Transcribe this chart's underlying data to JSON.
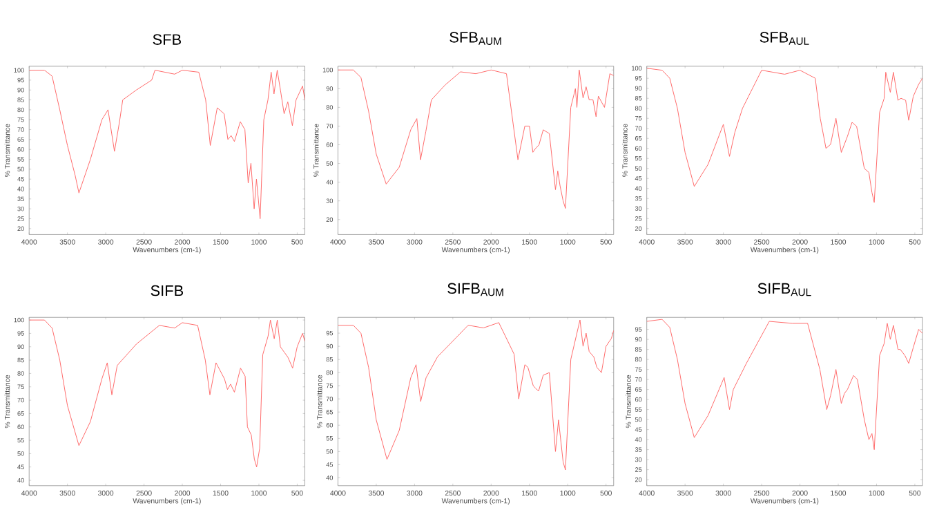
{
  "chart_data": [
    {
      "type": "line",
      "title": "SFB",
      "xlabel": "Wavenumbers (cm-1)",
      "ylabel": "% Transmittance",
      "xlim": [
        4000,
        400
      ],
      "ylim": [
        17,
        102
      ],
      "xticks": [
        4000,
        3500,
        3000,
        2500,
        2000,
        1500,
        1000,
        500
      ],
      "yticks": [
        20,
        25,
        30,
        35,
        40,
        45,
        50,
        55,
        60,
        65,
        70,
        75,
        80,
        85,
        90,
        95,
        100
      ],
      "x": [
        4000,
        3800,
        3700,
        3600,
        3500,
        3400,
        3350,
        3200,
        3050,
        2970,
        2886,
        2820,
        2778,
        2600,
        2400,
        2357,
        2100,
        2000,
        1785,
        1695,
        1635,
        1544,
        1454,
        1405,
        1363,
        1320,
        1243,
        1183,
        1140,
        1104,
        1062,
        1032,
        984,
        936,
        882,
        840,
        803,
        761,
        719,
        671,
        623,
        563,
        515,
        430,
        400
      ],
      "series": [
        {
          "color": "#ff6b6b",
          "values": [
            100,
            100,
            97,
            80,
            62,
            47,
            38,
            55,
            75,
            80,
            59,
            74,
            85,
            90,
            95,
            100,
            98,
            100,
            99,
            85,
            62,
            81,
            78,
            65,
            67,
            64,
            74,
            70,
            43,
            53,
            30,
            45,
            25,
            75,
            85,
            99,
            88,
            100,
            90,
            78,
            84,
            72,
            85,
            92,
            85
          ]
        }
      ]
    },
    {
      "type": "line",
      "title": "SFB$_{AUM}$",
      "xlabel": "Wavenumbers (cm-1)",
      "ylabel": "% Transmittance",
      "xlim": [
        4000,
        400
      ],
      "ylim": [
        12,
        102
      ],
      "xticks": [
        4000,
        3500,
        3000,
        2500,
        2000,
        1500,
        1000,
        500
      ],
      "yticks": [
        20,
        30,
        40,
        50,
        60,
        70,
        80,
        90,
        100
      ],
      "x": [
        4000,
        3800,
        3700,
        3600,
        3500,
        3370,
        3200,
        3050,
        2970,
        2922,
        2853,
        2780,
        2600,
        2400,
        2200,
        2000,
        1800,
        1735,
        1650,
        1560,
        1500,
        1455,
        1420,
        1375,
        1320,
        1240,
        1160,
        1130,
        1100,
        1060,
        1030,
        960,
        900,
        880,
        850,
        800,
        760,
        720,
        670,
        630,
        600,
        520,
        450,
        400
      ],
      "series": [
        {
          "color": "#ff6b6b",
          "values": [
            100,
            100,
            96,
            78,
            55,
            39,
            48,
            68,
            74,
            52,
            67,
            84,
            92,
            99,
            98,
            100,
            98,
            78,
            52,
            70,
            70,
            56,
            58,
            60,
            68,
            66,
            36,
            46,
            38,
            30,
            26,
            80,
            90,
            80,
            100,
            85,
            91,
            84,
            84,
            75,
            86,
            80,
            98,
            97
          ]
        }
      ]
    },
    {
      "type": "line",
      "title": "SFB$_{AUL}$",
      "xlabel": "Wavenumbers (cm-1)",
      "ylabel": "% Transmittance",
      "xlim": [
        4000,
        400
      ],
      "ylim": [
        17,
        101
      ],
      "xticks": [
        4000,
        3500,
        3000,
        2500,
        2000,
        1500,
        1000,
        500
      ],
      "yticks": [
        20,
        25,
        30,
        35,
        40,
        45,
        50,
        55,
        60,
        65,
        70,
        75,
        80,
        85,
        90,
        95,
        100
      ],
      "x": [
        4000,
        3800,
        3700,
        3600,
        3500,
        3380,
        3200,
        3000,
        2920,
        2850,
        2750,
        2500,
        2200,
        2000,
        1800,
        1735,
        1660,
        1600,
        1530,
        1460,
        1420,
        1380,
        1320,
        1260,
        1160,
        1100,
        1060,
        1030,
        960,
        900,
        880,
        820,
        780,
        720,
        680,
        620,
        580,
        520,
        450,
        400
      ],
      "series": [
        {
          "color": "#ff6b6b",
          "values": [
            100,
            99,
            95,
            80,
            58,
            41,
            52,
            72,
            56,
            68,
            80,
            99,
            97,
            99,
            95,
            75,
            60,
            62,
            75,
            58,
            62,
            66,
            73,
            71,
            50,
            48,
            38,
            33,
            78,
            85,
            98,
            88,
            98,
            84,
            85,
            84,
            74,
            86,
            92,
            95
          ]
        }
      ]
    },
    {
      "type": "line",
      "title": "SIFB",
      "xlabel": "Wavenumbers (cm-1)",
      "ylabel": "% Transmittance",
      "xlim": [
        4000,
        400
      ],
      "ylim": [
        38,
        101
      ],
      "xticks": [
        4000,
        3500,
        3000,
        2500,
        2000,
        1500,
        1000,
        500
      ],
      "yticks": [
        40,
        45,
        50,
        55,
        60,
        65,
        70,
        75,
        80,
        85,
        90,
        95,
        100
      ],
      "x": [
        4000,
        3800,
        3700,
        3600,
        3500,
        3350,
        3200,
        3050,
        2980,
        2920,
        2850,
        2600,
        2300,
        2100,
        2000,
        1800,
        1700,
        1640,
        1560,
        1450,
        1410,
        1370,
        1320,
        1240,
        1180,
        1150,
        1100,
        1060,
        1030,
        990,
        950,
        880,
        850,
        800,
        760,
        720,
        670,
        620,
        560,
        500,
        430,
        400
      ],
      "series": [
        {
          "color": "#ff6b6b",
          "values": [
            100,
            100,
            97,
            85,
            68,
            53,
            62,
            78,
            84,
            72,
            83,
            91,
            98,
            97,
            99,
            98,
            85,
            72,
            84,
            78,
            74,
            76,
            73,
            82,
            79,
            60,
            57,
            48,
            45,
            52,
            87,
            94,
            100,
            93,
            100,
            90,
            88,
            86,
            82,
            90,
            95,
            92
          ]
        }
      ]
    },
    {
      "type": "line",
      "title": "SIFB$_{AUM}$",
      "xlabel": "Wavenumbers (cm-1)",
      "ylabel": "% Transmittance",
      "xlim": [
        4000,
        400
      ],
      "ylim": [
        37,
        101
      ],
      "xticks": [
        4000,
        3500,
        3000,
        2500,
        2000,
        1500,
        1000,
        500
      ],
      "yticks": [
        40,
        45,
        50,
        55,
        60,
        65,
        70,
        75,
        80,
        85,
        90,
        95
      ],
      "x": [
        4000,
        3800,
        3700,
        3600,
        3500,
        3360,
        3200,
        3050,
        2980,
        2920,
        2850,
        2700,
        2300,
        2100,
        1900,
        1700,
        1640,
        1560,
        1520,
        1450,
        1420,
        1380,
        1320,
        1240,
        1160,
        1120,
        1060,
        1030,
        960,
        880,
        840,
        800,
        760,
        720,
        660,
        620,
        560,
        500,
        430,
        400
      ],
      "series": [
        {
          "color": "#ff6b6b",
          "values": [
            98,
            98,
            95,
            82,
            62,
            47,
            58,
            78,
            83,
            69,
            78,
            86,
            98,
            97,
            99,
            87,
            70,
            83,
            82,
            75,
            74,
            73,
            79,
            80,
            50,
            62,
            46,
            43,
            85,
            95,
            100,
            90,
            95,
            88,
            86,
            82,
            80,
            90,
            93,
            96
          ]
        }
      ]
    },
    {
      "type": "line",
      "title": "SIFB$_{AUL}$",
      "xlabel": "Wavenumbers (cm-1)",
      "ylabel": "% Transmittance",
      "xlim": [
        4000,
        400
      ],
      "ylim": [
        17,
        101
      ],
      "xticks": [
        4000,
        3500,
        3000,
        2500,
        2000,
        1500,
        1000,
        500
      ],
      "yticks": [
        20,
        25,
        30,
        35,
        40,
        45,
        50,
        55,
        60,
        65,
        70,
        75,
        80,
        85,
        90,
        95
      ],
      "x": [
        4000,
        3800,
        3700,
        3600,
        3500,
        3380,
        3200,
        2990,
        2920,
        2870,
        2700,
        2400,
        2100,
        1900,
        1740,
        1650,
        1600,
        1530,
        1460,
        1420,
        1380,
        1300,
        1250,
        1160,
        1100,
        1060,
        1030,
        960,
        900,
        860,
        820,
        780,
        720,
        690,
        630,
        580,
        520,
        450,
        400
      ],
      "series": [
        {
          "color": "#ff6b6b",
          "values": [
            99,
            100,
            96,
            80,
            58,
            41,
            52,
            71,
            55,
            65,
            78,
            99,
            98,
            98,
            75,
            55,
            62,
            75,
            58,
            63,
            65,
            72,
            70,
            50,
            40,
            43,
            35,
            82,
            88,
            98,
            90,
            97,
            85,
            85,
            82,
            78,
            86,
            95,
            93
          ]
        }
      ]
    }
  ]
}
